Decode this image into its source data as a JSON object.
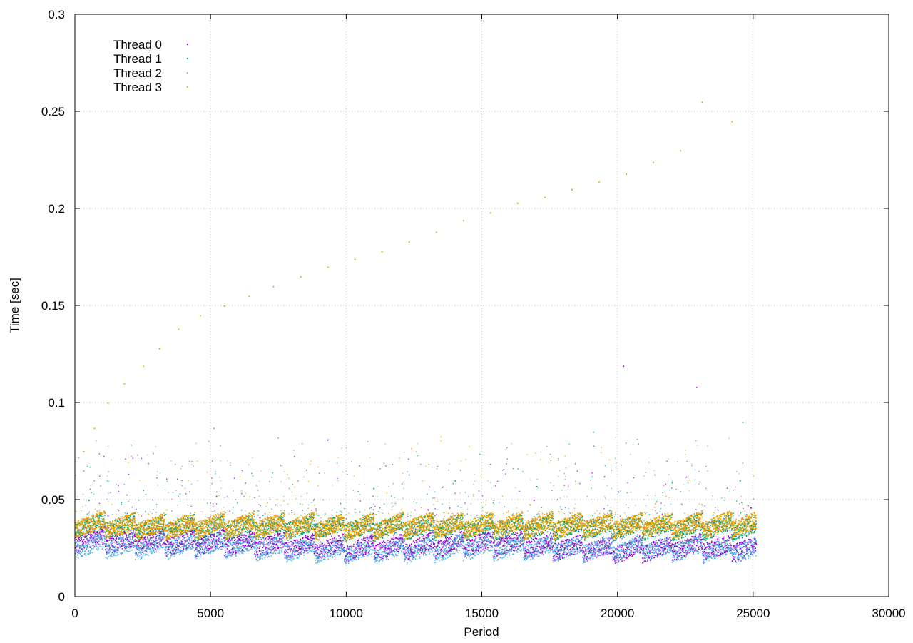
{
  "chart_data": {
    "type": "scatter",
    "title": "",
    "xlabel": "Period",
    "ylabel": "Time [sec]",
    "xlim": [
      0,
      30000
    ],
    "ylim": [
      0,
      0.3
    ],
    "x_ticks": [
      0,
      5000,
      10000,
      15000,
      20000,
      25000,
      30000
    ],
    "x_tick_labels": [
      "0",
      "5000",
      "10000",
      "15000",
      "20000",
      "25000",
      "30000"
    ],
    "y_ticks": [
      0,
      0.05,
      0.1,
      0.15,
      0.2,
      0.25,
      0.3
    ],
    "y_tick_labels": [
      "0",
      "0.05",
      "0.1",
      "0.15",
      "0.2",
      "0.25",
      "0.3"
    ],
    "grid": true,
    "legend_position": "top-left",
    "x_range_of_data": [
      0,
      25100
    ],
    "series": [
      {
        "name": "Thread 0",
        "color": "#9400d3",
        "x": [
          0,
          2500,
          5000,
          7500,
          10000,
          12500,
          15000,
          17500,
          20000,
          22500,
          25000
        ],
        "y": [
          0.03,
          0.028,
          0.028,
          0.027,
          0.025,
          0.026,
          0.028,
          0.026,
          0.024,
          0.026,
          0.025
        ],
        "outliers_x": [
          300,
          1200,
          3500,
          6800,
          9300,
          13000,
          16900,
          20200,
          22900,
          24900
        ],
        "outliers_y": [
          0.04,
          0.042,
          0.038,
          0.041,
          0.081,
          0.045,
          0.05,
          0.119,
          0.108,
          0.046
        ]
      },
      {
        "name": "Thread 1",
        "color": "#009e73",
        "x": [
          0,
          2500,
          5000,
          7500,
          10000,
          12500,
          15000,
          17500,
          20000,
          22500,
          25000
        ],
        "y": [
          0.037,
          0.036,
          0.036,
          0.036,
          0.036,
          0.036,
          0.036,
          0.036,
          0.036,
          0.036,
          0.036
        ],
        "outliers_x": [
          500,
          2500,
          5200,
          8000,
          11000,
          14000,
          17000,
          19500,
          22000,
          24500
        ],
        "outliers_y": [
          0.05,
          0.055,
          0.052,
          0.058,
          0.056,
          0.06,
          0.057,
          0.062,
          0.059,
          0.06
        ]
      },
      {
        "name": "Thread 2",
        "color": "#56b4e9",
        "x": [
          0,
          2500,
          5000,
          7500,
          10000,
          12500,
          15000,
          17500,
          20000,
          22500,
          25000
        ],
        "y": [
          0.027,
          0.026,
          0.027,
          0.025,
          0.024,
          0.024,
          0.026,
          0.025,
          0.025,
          0.025,
          0.024
        ],
        "outliers_x": [
          300,
          1800,
          4200,
          5100,
          8200,
          12300,
          15900,
          19100,
          21800,
          24600
        ],
        "outliers_y": [
          0.065,
          0.058,
          0.07,
          0.087,
          0.06,
          0.063,
          0.077,
          0.085,
          0.07,
          0.09
        ]
      },
      {
        "name": "Thread 3",
        "color": "#e69f00",
        "x": [
          0,
          2500,
          5000,
          7500,
          10000,
          12500,
          15000,
          17500,
          20000,
          22500,
          25000
        ],
        "y": [
          0.038,
          0.036,
          0.037,
          0.037,
          0.036,
          0.037,
          0.037,
          0.037,
          0.037,
          0.037,
          0.038
        ],
        "outliers_x": [
          300,
          700,
          1200,
          1800,
          2500,
          3100,
          3800,
          4600,
          5500,
          6400,
          7300,
          8300,
          9300,
          10300,
          11300,
          12300,
          13300,
          14300,
          15300,
          16300,
          17300,
          18300,
          19300,
          20300,
          21300,
          22300,
          23100,
          24200
        ],
        "outliers_y": [
          0.075,
          0.087,
          0.1,
          0.11,
          0.119,
          0.128,
          0.138,
          0.145,
          0.15,
          0.155,
          0.16,
          0.165,
          0.17,
          0.174,
          0.178,
          0.183,
          0.188,
          0.194,
          0.198,
          0.203,
          0.206,
          0.21,
          0.214,
          0.218,
          0.224,
          0.23,
          0.255,
          0.245
        ]
      }
    ]
  }
}
